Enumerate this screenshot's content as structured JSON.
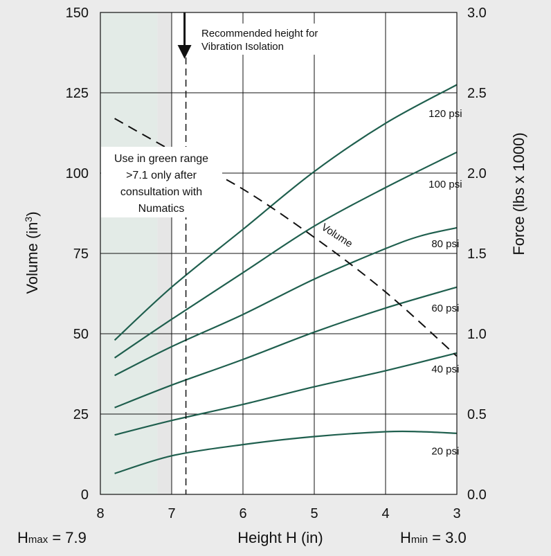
{
  "chart_data": {
    "type": "line",
    "x_axis": {
      "label": "Height H (in)",
      "min": 3,
      "max": 8,
      "reversed": true,
      "ticks": [
        8,
        7,
        6,
        5,
        4,
        3
      ]
    },
    "y_left": {
      "label": "Volume (in³)",
      "label_base": "Volume (in",
      "label_sup": "3",
      "label_end": ")",
      "min": 0,
      "max": 150,
      "ticks": [
        0,
        25,
        50,
        75,
        100,
        125,
        150
      ]
    },
    "y_right": {
      "label": "Force (lbs x 1000)",
      "min": 0.0,
      "max": 3.0,
      "ticks": [
        "0.0",
        "0.5",
        "1.0",
        "1.5",
        "2.0",
        "2.5",
        "3.0"
      ]
    },
    "grid": true,
    "series": [
      {
        "name": "20 psi",
        "axis": "right",
        "x": [
          7.8,
          7.0,
          6.0,
          5.0,
          4.0,
          3.5,
          3.0
        ],
        "values": [
          0.13,
          0.24,
          0.31,
          0.36,
          0.39,
          0.39,
          0.38
        ],
        "label_pos": [
          3.55,
          0.27
        ]
      },
      {
        "name": "40 psi",
        "axis": "right",
        "x": [
          7.8,
          7.0,
          6.0,
          5.0,
          4.0,
          3.0
        ],
        "values": [
          0.37,
          0.46,
          0.56,
          0.67,
          0.77,
          0.88
        ],
        "label_pos": [
          3.55,
          0.78
        ]
      },
      {
        "name": "60 psi",
        "axis": "right",
        "x": [
          7.8,
          7.0,
          6.0,
          5.0,
          4.0,
          3.0
        ],
        "values": [
          0.54,
          0.68,
          0.84,
          1.01,
          1.16,
          1.29
        ],
        "label_pos": [
          3.55,
          1.16
        ]
      },
      {
        "name": "80 psi",
        "axis": "right",
        "x": [
          7.8,
          7.0,
          6.0,
          5.0,
          4.0,
          3.5,
          3.0
        ],
        "values": [
          0.74,
          0.92,
          1.12,
          1.34,
          1.53,
          1.61,
          1.66
        ],
        "label_pos": [
          3.55,
          1.56
        ]
      },
      {
        "name": "100 psi",
        "axis": "right",
        "x": [
          7.8,
          7.0,
          6.0,
          5.0,
          4.0,
          3.0
        ],
        "values": [
          0.85,
          1.09,
          1.38,
          1.67,
          1.91,
          2.13
        ],
        "label_pos": [
          3.55,
          1.93
        ]
      },
      {
        "name": "120 psi",
        "axis": "right",
        "x": [
          7.8,
          7.0,
          6.0,
          5.0,
          4.0,
          3.0
        ],
        "values": [
          0.96,
          1.29,
          1.65,
          2.01,
          2.31,
          2.55
        ],
        "label_pos": [
          3.55,
          2.37
        ]
      }
    ],
    "volume_series": {
      "name": "Volume",
      "axis": "left",
      "style": "dashed",
      "x": [
        7.8,
        7.0,
        6.0,
        5.0,
        4.0,
        3.0
      ],
      "values": [
        117,
        107,
        95,
        80,
        63,
        43
      ],
      "label_pos": [
        4.9,
        78
      ]
    },
    "fill_color": "#1f5f4e",
    "green_range": {
      "x_from": 8.0,
      "x_to": 7.2,
      "color": "#e3ebe7"
    },
    "gray_band": {
      "x_from": 7.2,
      "x_to": 7.0,
      "color": "#e6e6e6"
    },
    "recommended_line": {
      "x": 6.8,
      "arrow_from": 150,
      "arrow_to": 136
    },
    "annotations": {
      "recommended": [
        "Recommended height for",
        "Vibration Isolation"
      ],
      "green_range": [
        "Use in green range",
        ">7.1 only after",
        "consultation with",
        "Numatics"
      ]
    },
    "bottom_labels": {
      "hmax_h": "H",
      "hmax_sub": "max",
      "hmax_val": " = 7.9",
      "hmin_h": "H",
      "hmin_sub": "min",
      "hmin_val": " = 3.0"
    }
  }
}
